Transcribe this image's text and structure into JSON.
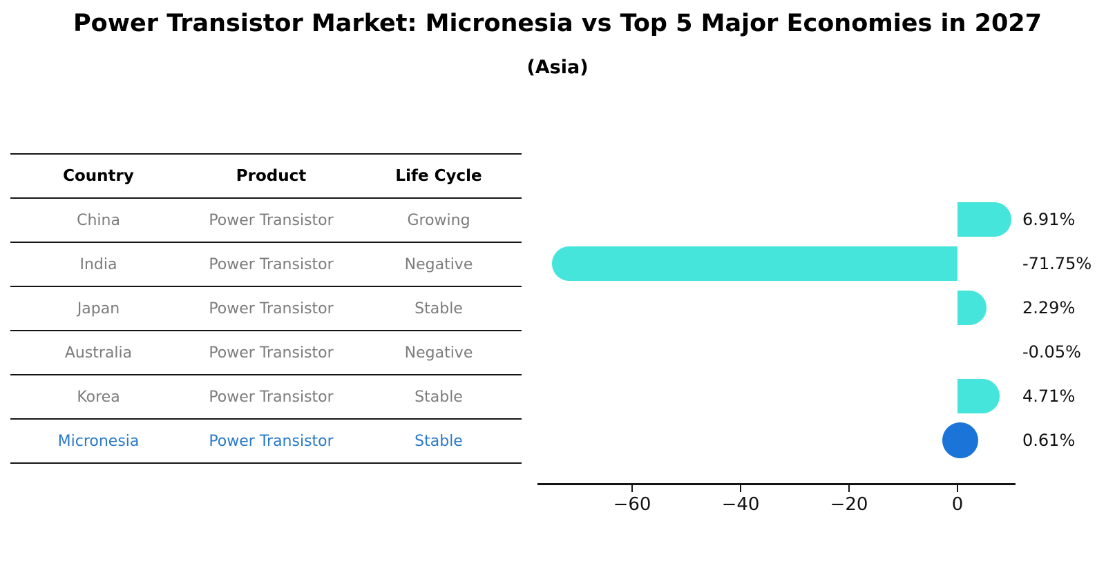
{
  "title": "Power Transistor Market: Micronesia vs Top 5 Major Economies in 2027",
  "subtitle": "(Asia)",
  "table": {
    "headers": [
      "Country",
      "Product",
      "Life Cycle"
    ],
    "rows": [
      {
        "country": "China",
        "product": "Power Transistor",
        "life_cycle": "Growing",
        "highlight": false
      },
      {
        "country": "India",
        "product": "Power Transistor",
        "life_cycle": "Negative",
        "highlight": false
      },
      {
        "country": "Japan",
        "product": "Power Transistor",
        "life_cycle": "Stable",
        "highlight": false
      },
      {
        "country": "Australia",
        "product": "Power Transistor",
        "life_cycle": "Negative",
        "highlight": false
      },
      {
        "country": "Korea",
        "product": "Power Transistor",
        "life_cycle": "Stable",
        "highlight": false
      },
      {
        "country": "Micronesia",
        "product": "Power Transistor",
        "life_cycle": "Stable",
        "highlight": true
      }
    ]
  },
  "chart_data": {
    "type": "bar",
    "orientation": "horizontal",
    "categories": [
      "China",
      "India",
      "Japan",
      "Australia",
      "Korea",
      "Micronesia"
    ],
    "values": [
      6.91,
      -71.75,
      2.29,
      -0.05,
      4.71,
      0.61
    ],
    "value_labels": [
      "6.91%",
      "-71.75%",
      "2.29%",
      "-0.05%",
      "4.71%",
      "0.61%"
    ],
    "x_tick_values": [
      -60,
      -40,
      -20,
      0
    ],
    "x_tick_labels": [
      "−60",
      "−40",
      "−20",
      "0"
    ],
    "xlim": [
      -77.5,
      10.8
    ],
    "grid": false,
    "legend": false,
    "highlight_index": 5,
    "highlight_marker": "circle"
  },
  "colors": {
    "bar": "#45E5DC",
    "highlight": "#1B75D8",
    "highlight_text": "#2A7AC8",
    "cell_text": "#7C7C7C",
    "axis_line": "#141414",
    "label_text": "#111111"
  }
}
